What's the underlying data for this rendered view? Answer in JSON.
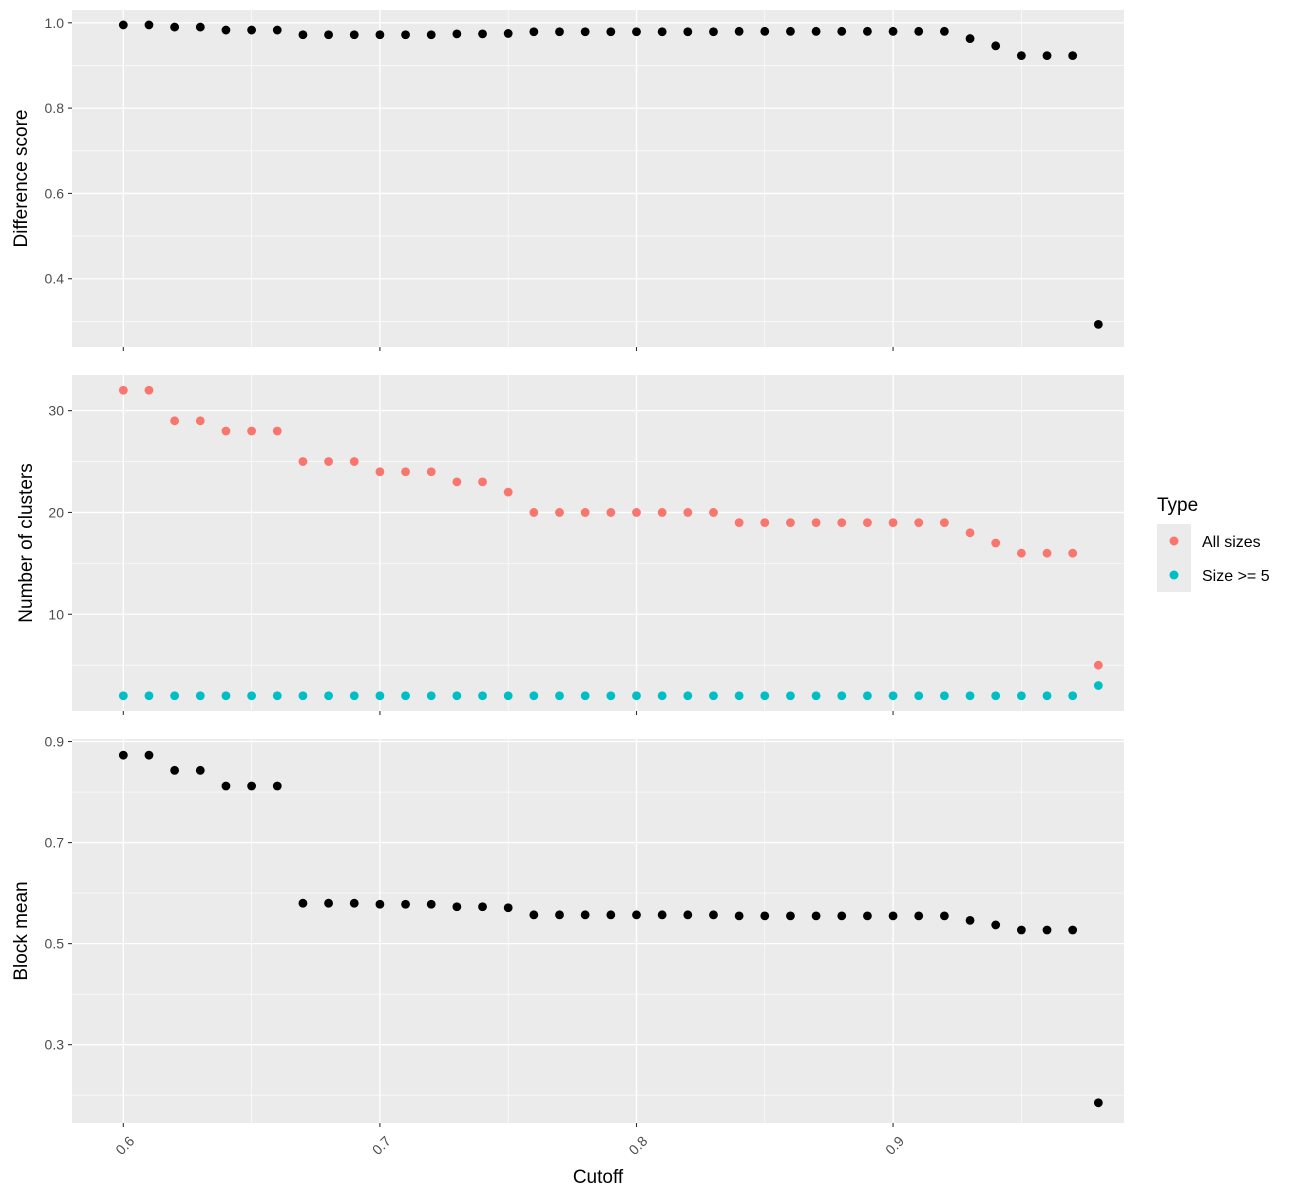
{
  "chart_data": {
    "type": "scatter",
    "x_axis": {
      "label": "Cutoff",
      "range": [
        0.58,
        0.99
      ],
      "ticks": [
        0.6,
        0.7,
        0.8,
        0.9
      ],
      "tick_labels": [
        "0.6",
        "0.7",
        "0.8",
        "0.9"
      ]
    },
    "x": [
      0.6,
      0.61,
      0.62,
      0.63,
      0.64,
      0.65,
      0.66,
      0.67,
      0.68,
      0.69,
      0.7,
      0.71,
      0.72,
      0.73,
      0.74,
      0.75,
      0.76,
      0.77,
      0.78,
      0.79,
      0.8,
      0.81,
      0.82,
      0.83,
      0.84,
      0.85,
      0.86,
      0.87,
      0.88,
      0.89,
      0.9,
      0.91,
      0.92,
      0.93,
      0.94,
      0.95,
      0.96,
      0.97,
      0.98
    ],
    "panels": [
      {
        "ylabel": "Difference score",
        "ylim": [
          0.24,
          1.03
        ],
        "y_ticks": [
          0.4,
          0.6,
          0.8,
          1.0
        ],
        "y_tick_labels": [
          "0.4",
          "0.6",
          "0.8",
          "1.0"
        ],
        "series": [
          {
            "color": "#000000",
            "values": [
              0.995,
              0.995,
              0.99,
              0.99,
              0.983,
              0.983,
              0.983,
              0.972,
              0.972,
              0.972,
              0.972,
              0.972,
              0.972,
              0.974,
              0.974,
              0.975,
              0.979,
              0.979,
              0.979,
              0.979,
              0.979,
              0.979,
              0.979,
              0.979,
              0.98,
              0.98,
              0.98,
              0.98,
              0.98,
              0.98,
              0.98,
              0.98,
              0.98,
              0.963,
              0.946,
              0.923,
              0.923,
              0.923,
              0.293
            ]
          }
        ]
      },
      {
        "ylabel": "Number of clusters",
        "ylim": [
          0.5,
          33.5
        ],
        "y_ticks": [
          10,
          20,
          30
        ],
        "y_tick_labels": [
          "10",
          "20",
          "30"
        ],
        "series": [
          {
            "name": "All sizes",
            "color": "#F8766D",
            "values": [
              32,
              32,
              29,
              29,
              28,
              28,
              28,
              25,
              25,
              25,
              24,
              24,
              24,
              23,
              23,
              22,
              20,
              20,
              20,
              20,
              20,
              20,
              20,
              20,
              19,
              19,
              19,
              19,
              19,
              19,
              19,
              19,
              19,
              18,
              17,
              16,
              16,
              16,
              5
            ]
          },
          {
            "name": "Size >= 5",
            "color": "#00BFC4",
            "values": [
              2,
              2,
              2,
              2,
              2,
              2,
              2,
              2,
              2,
              2,
              2,
              2,
              2,
              2,
              2,
              2,
              2,
              2,
              2,
              2,
              2,
              2,
              2,
              2,
              2,
              2,
              2,
              2,
              2,
              2,
              2,
              2,
              2,
              2,
              2,
              2,
              2,
              2,
              3
            ]
          }
        ]
      },
      {
        "ylabel": "Block mean",
        "ylim": [
          0.145,
          0.905
        ],
        "y_ticks": [
          0.3,
          0.5,
          0.7,
          0.9
        ],
        "y_tick_labels": [
          "0.3",
          "0.5",
          "0.7",
          "0.9"
        ],
        "series": [
          {
            "color": "#000000",
            "values": [
              0.873,
              0.873,
              0.843,
              0.843,
              0.812,
              0.812,
              0.812,
              0.58,
              0.58,
              0.58,
              0.578,
              0.578,
              0.578,
              0.573,
              0.573,
              0.571,
              0.557,
              0.557,
              0.557,
              0.557,
              0.557,
              0.557,
              0.557,
              0.557,
              0.555,
              0.555,
              0.555,
              0.555,
              0.555,
              0.555,
              0.555,
              0.555,
              0.555,
              0.546,
              0.537,
              0.527,
              0.527,
              0.527,
              0.185
            ]
          }
        ]
      }
    ],
    "legend": {
      "title": "Type",
      "position": "right",
      "entries": [
        {
          "label": "All sizes",
          "color": "#F8766D"
        },
        {
          "label": "Size >= 5",
          "color": "#00BFC4"
        }
      ]
    },
    "grid": true,
    "panel_background": "#EBEBEB",
    "grid_color": "#FFFFFF"
  }
}
